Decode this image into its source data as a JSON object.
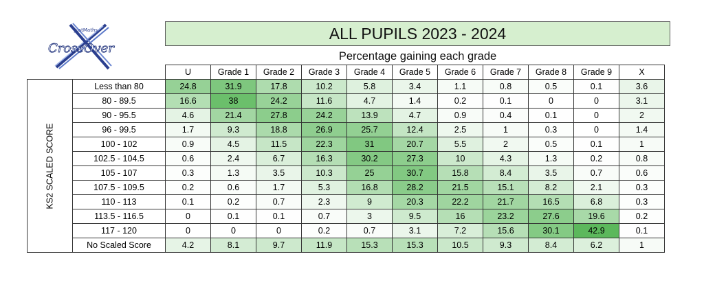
{
  "logo": {
    "small_text": "JustMaths",
    "main_text": "CrossOver",
    "icon": "crossover-logo"
  },
  "title": "ALL PUPILS 2023 - 2024",
  "subtitle": "Percentage gaining each grade",
  "row_axis_label": "KS2 SCALED SCORE",
  "colors": {
    "title_bg": "#d6efcf",
    "low": "#ffffff",
    "high": "#5cb85c"
  },
  "chart_data": {
    "type": "heatmap",
    "title": "ALL PUPILS 2023 - 2024",
    "subtitle": "Percentage gaining each grade",
    "ylabel": "KS2 SCALED SCORE",
    "columns": [
      "U",
      "Grade 1",
      "Grade 2",
      "Grade 3",
      "Grade 4",
      "Grade 5",
      "Grade 6",
      "Grade 7",
      "Grade 8",
      "Grade 9",
      "X"
    ],
    "rows": [
      "Less than 80",
      "80 - 89.5",
      "90 - 95.5",
      "96 - 99.5",
      "100 - 102",
      "102.5 - 104.5",
      "105 - 107",
      "107.5 - 109.5",
      "110 - 113",
      "113.5 - 116.5",
      "117 - 120",
      "No Scaled Score"
    ],
    "values": [
      [
        24.8,
        31.9,
        17.8,
        10.2,
        5.8,
        3.4,
        1.1,
        0.8,
        0.5,
        0.1,
        3.6
      ],
      [
        16.6,
        38,
        24.2,
        11.6,
        4.7,
        1.4,
        0.2,
        0.1,
        0,
        0,
        3.1
      ],
      [
        4.6,
        21.4,
        27.8,
        24.2,
        13.9,
        4.7,
        0.9,
        0.4,
        0.1,
        0,
        2
      ],
      [
        1.7,
        9.3,
        18.8,
        26.9,
        25.7,
        12.4,
        2.5,
        1,
        0.3,
        0,
        1.4
      ],
      [
        0.9,
        4.5,
        11.5,
        22.3,
        31,
        20.7,
        5.5,
        2,
        0.5,
        0.1,
        1
      ],
      [
        0.6,
        2.4,
        6.7,
        16.3,
        30.2,
        27.3,
        10,
        4.3,
        1.3,
        0.2,
        0.8
      ],
      [
        0.3,
        1.3,
        3.5,
        10.3,
        25,
        30.7,
        15.8,
        8.4,
        3.5,
        0.7,
        0.6
      ],
      [
        0.2,
        0.6,
        1.7,
        5.3,
        16.8,
        28.2,
        21.5,
        15.1,
        8.2,
        2.1,
        0.3
      ],
      [
        0.1,
        0.2,
        0.7,
        2.3,
        9,
        20.3,
        22.2,
        21.7,
        16.5,
        6.8,
        0.3
      ],
      [
        0,
        0.1,
        0.1,
        0.7,
        3,
        9.5,
        16,
        23.2,
        27.6,
        19.6,
        0.2
      ],
      [
        0,
        0,
        0,
        0.2,
        0.7,
        3.1,
        7.2,
        15.6,
        30.1,
        42.9,
        0.1
      ],
      [
        4.2,
        8.1,
        9.7,
        11.9,
        15.3,
        15.3,
        10.5,
        9.3,
        8.4,
        6.2,
        1
      ]
    ]
  }
}
